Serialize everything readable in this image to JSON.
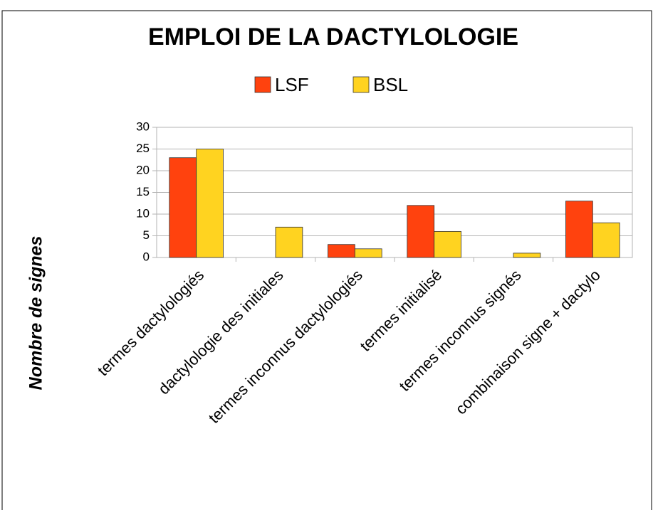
{
  "chart_data": {
    "type": "bar",
    "title": "EMPLOI DE LA DACTYLOLOGIE",
    "y_label": "Nombre de signes",
    "categories": [
      "termes dactylologiés",
      "dactylologie des initiales",
      "termes inconnus dactylologiés",
      "termes initialisé",
      "termes inconnus signés",
      "combinaison signe + dactylo"
    ],
    "series": [
      {
        "name": "LSF",
        "color": "#ff420e",
        "values": [
          23,
          0,
          3,
          12,
          0,
          13
        ]
      },
      {
        "name": "BSL",
        "color": "#ffd320",
        "values": [
          25,
          7,
          2,
          6,
          1,
          8
        ]
      }
    ],
    "ylim": [
      0,
      30
    ],
    "yticks": [
      0,
      5,
      10,
      15,
      20,
      25,
      30
    ],
    "grid": true,
    "legend": "top"
  }
}
